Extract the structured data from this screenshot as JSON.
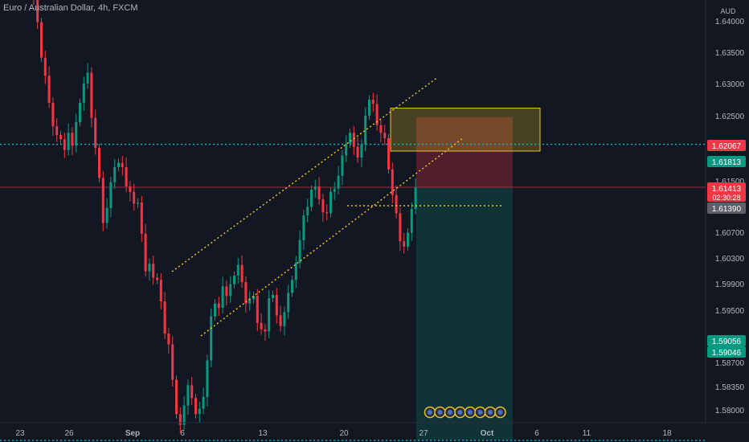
{
  "header": {
    "title": "Euro / Australian Dollar, 4h, FXCM"
  },
  "chart_data": {
    "type": "candlestick",
    "symbol": "Euro / Australian Dollar, 4h, FXCM",
    "currency": "AUD",
    "y_ticks": [
      "1.64000",
      "1.63500",
      "1.63000",
      "1.62500",
      "1.62000",
      "1.61500",
      "1.60700",
      "1.60300",
      "1.59900",
      "1.59500",
      "1.58700",
      "1.58350",
      "1.58000"
    ],
    "x_ticks": [
      "23",
      "26",
      "Sep",
      "6",
      "13",
      "20",
      "27",
      "Oct",
      "6",
      "11",
      "18"
    ],
    "price_tags": [
      {
        "label": "1.62067",
        "color": "#f23645"
      },
      {
        "label": "1.61813",
        "color": "#089981"
      },
      {
        "label": "1.61413",
        "sub": "02:30:28",
        "color": "#f23645"
      },
      {
        "label": "1.61390",
        "color": "#5d606b"
      },
      {
        "label": "1.59056",
        "color": "#089981"
      },
      {
        "label": "1.59046",
        "color": "#089981"
      }
    ],
    "horizontal_levels": [
      1.61813,
      1.59056
    ],
    "closes": [
      1.6325,
      1.6345,
      1.6372,
      1.6402,
      1.6378,
      1.6355,
      1.6332,
      1.635,
      1.632,
      1.6295,
      1.6262,
      1.6245,
      1.622,
      1.6198,
      1.619,
      1.6186,
      1.6176,
      1.6192,
      1.618,
      1.6202,
      1.622,
      1.6238,
      1.6248,
      1.6206,
      1.6178,
      1.615,
      1.6108,
      1.6122,
      1.6146,
      1.616,
      1.6164,
      1.616,
      1.6142,
      1.6137,
      1.6126,
      1.6127,
      1.6098,
      1.6063,
      1.607,
      1.6057,
      1.6055,
      1.6035,
      1.6005,
      1.5995,
      1.5962,
      1.593,
      1.592,
      1.5938,
      1.5957,
      1.5945,
      1.593,
      1.5935,
      1.5946,
      1.598,
      1.6021,
      1.6033,
      1.6029,
      1.6049,
      1.604,
      1.6051,
      1.6059,
      1.6069,
      1.6053,
      1.6033,
      1.6037,
      1.604,
      1.6015,
      1.6009,
      1.6007,
      1.6038,
      1.6041,
      1.6022,
      1.6012,
      1.6025,
      1.6043,
      1.6055,
      1.6071,
      1.6092,
      1.6115,
      1.6123,
      1.6139,
      1.6142,
      1.613,
      1.6118,
      1.6117,
      1.6137,
      1.614,
      1.6152,
      1.6171,
      1.6182,
      1.6192,
      1.6179,
      1.6169,
      1.6181,
      1.6208,
      1.6223,
      1.6219,
      1.6199,
      1.6192,
      1.6187,
      1.6158,
      1.6134,
      1.6117,
      1.6091,
      1.6086,
      1.6099,
      1.6121,
      1.6141
    ]
  },
  "trade_box": {
    "entry": "1.61413",
    "stop": "1.62067",
    "target": "1.59056",
    "supply_zone": [
      1.6175,
      1.6215
    ]
  },
  "bottom_marks": 8,
  "colors": {
    "up": "#089981",
    "down": "#f23645",
    "channel": "#e6c229",
    "level_line": "#00bcd4",
    "bg": "#131722",
    "axis_text": "#b2b5be"
  }
}
